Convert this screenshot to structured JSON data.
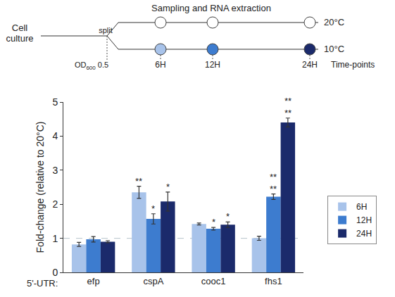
{
  "chart_data": {
    "type": "bar",
    "x_prefix": "5'-UTR:",
    "y_label": "Fold-change (relative to 20°C)",
    "categories": [
      "efp",
      "cspA",
      "cooc1",
      "fhs1"
    ],
    "series": [
      {
        "name": "6H",
        "color": "#a8c3ea",
        "values": [
          0.82,
          2.35,
          1.42,
          1.0
        ],
        "errors": [
          0.06,
          0.18,
          0.03,
          0.06
        ],
        "significance": [
          null,
          "**",
          null,
          null
        ]
      },
      {
        "name": "12H",
        "color": "#3d7ccf",
        "values": [
          0.97,
          1.57,
          1.28,
          2.22
        ],
        "errors": [
          0.08,
          0.15,
          0.04,
          0.08
        ],
        "significance": [
          null,
          "*",
          "*",
          "**\n**"
        ]
      },
      {
        "name": "24H",
        "color": "#1b2a6b",
        "values": [
          0.9,
          2.08,
          1.4,
          4.4
        ],
        "errors": [
          0.03,
          0.28,
          0.08,
          0.13
        ],
        "significance": [
          null,
          "*",
          "*",
          "**\n**"
        ]
      }
    ],
    "reference_line": 1,
    "ylim": [
      0,
      5
    ],
    "yticks": [
      0,
      1,
      2,
      3,
      4,
      5
    ],
    "grid": false,
    "legend": "right"
  },
  "schematic": {
    "title": "Sampling and RNA extraction",
    "start": [
      "Cell",
      "culture"
    ],
    "split": "split",
    "od": "OD",
    "od_sub": "600",
    "od_value": "0.5",
    "temperatures": [
      "20°C",
      "10°C"
    ],
    "time_points": [
      "6H",
      "12H",
      "24H"
    ],
    "time_label": "Time-points"
  }
}
